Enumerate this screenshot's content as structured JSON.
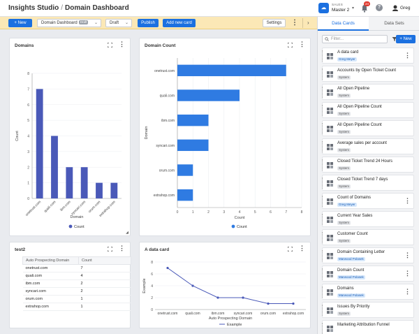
{
  "header": {
    "app_title": "Insights Studio",
    "separator": "/",
    "page_title": "Domain Dashboard",
    "org_label": "SALES",
    "org_name": "Master 2",
    "notification_count": "24",
    "user_name": "Greg"
  },
  "toolbar": {
    "new_label": "New",
    "dashboard_select": "Domain Dashboard",
    "draft_badge": "Draft",
    "status_select": "Draft",
    "publish_label": "Publish",
    "add_card_label": "Add new card",
    "settings_label": "Settings"
  },
  "cards": {
    "domains": {
      "title": "Domains"
    },
    "domain_count": {
      "title": "Domain Count"
    },
    "test2": {
      "title": "test2",
      "columns": [
        "Auto Prospecting Domain",
        "Count"
      ],
      "rows": [
        [
          "onetrust.com",
          "7"
        ],
        [
          "quali.com",
          "4"
        ],
        [
          "ibm.com",
          "2"
        ],
        [
          "syncari.com",
          "2"
        ],
        [
          "orum.com",
          "1"
        ],
        [
          "extrahop.com",
          "1"
        ]
      ]
    },
    "data_card": {
      "title": "A data card"
    }
  },
  "chart_data": [
    {
      "type": "bar",
      "title": "Domains",
      "categories": [
        "onetrust.com",
        "quali.com",
        "ibm.com",
        "syncari.com",
        "orum.com",
        "extrahop.com"
      ],
      "series": [
        {
          "name": "Count",
          "values": [
            7,
            4,
            2,
            2,
            1,
            1
          ]
        }
      ],
      "xlabel": "Domain",
      "ylabel": "Count",
      "ylim": [
        0,
        8
      ],
      "yticks": [
        0,
        1,
        2,
        3,
        4,
        5,
        6,
        7,
        8
      ],
      "color": "#4a59b8",
      "legend": "bottom",
      "grid": true
    },
    {
      "type": "bar",
      "orientation": "horizontal",
      "title": "Domain Count",
      "categories": [
        "onetrust.com",
        "quali.com",
        "ibm.com",
        "syncari.com",
        "orum.com",
        "extrahop.com"
      ],
      "series": [
        {
          "name": "Count",
          "values": [
            7,
            4,
            2,
            2,
            1,
            1
          ]
        }
      ],
      "xlabel": "Count",
      "ylabel": "Domain",
      "xlim": [
        0,
        8
      ],
      "xticks": [
        0,
        1,
        2,
        3,
        4,
        5,
        6,
        7,
        8
      ],
      "color": "#2f7be2",
      "legend": "bottom",
      "grid": true
    },
    {
      "type": "line",
      "title": "A data card",
      "categories": [
        "onetrust.com",
        "quali.com",
        "ibm.com",
        "syncari.com",
        "orum.com",
        "extrahop.com"
      ],
      "series": [
        {
          "name": "Example",
          "values": [
            7,
            4,
            2,
            2,
            1,
            1
          ]
        }
      ],
      "xlabel": "Auto Prospecting Domain",
      "ylabel": "Example",
      "ylim": [
        0,
        8
      ],
      "yticks": [
        0,
        2,
        4,
        6,
        8
      ],
      "color": "#4a59b8",
      "legend": "bottom",
      "grid": true
    }
  ],
  "panel": {
    "tab_cards": "Data Cards",
    "tab_sets": "Data Sets",
    "filter_placeholder": "Filter...",
    "new_label": "New",
    "items": [
      {
        "title": "A data card",
        "tag": "Greg Meyer",
        "tag_style": "blue",
        "menu": true
      },
      {
        "title": "Accounts by Open Ticket Count",
        "tag": "System",
        "tag_style": "gray",
        "menu": false
      },
      {
        "title": "All Open Pipeline",
        "tag": "System",
        "tag_style": "gray",
        "menu": false
      },
      {
        "title": "All Open Pipeline Count",
        "tag": "System",
        "tag_style": "gray",
        "menu": false
      },
      {
        "title": "All Open Pipeline Count",
        "tag": "System",
        "tag_style": "gray",
        "menu": false
      },
      {
        "title": "Average sales per account",
        "tag": "System",
        "tag_style": "gray",
        "menu": false
      },
      {
        "title": "Closed Ticket Trend 24 Hours",
        "tag": "System",
        "tag_style": "gray",
        "menu": false
      },
      {
        "title": "Closed Ticket Trend 7 days",
        "tag": "System",
        "tag_style": "gray",
        "menu": false
      },
      {
        "title": "Count of Domains",
        "tag": "Greg Meyer",
        "tag_style": "blue",
        "menu": true
      },
      {
        "title": "Current Year Sales",
        "tag": "System",
        "tag_style": "gray",
        "menu": false
      },
      {
        "title": "Customer Count",
        "tag": "System",
        "tag_style": "gray",
        "menu": false
      },
      {
        "title": "Domain Containing Letter",
        "tag": "Marwood Polasek",
        "tag_style": "blue",
        "menu": true
      },
      {
        "title": "Domain Count",
        "tag": "Marwood Polasek",
        "tag_style": "blue",
        "menu": true
      },
      {
        "title": "Domains",
        "tag": "Marwood Polasek",
        "tag_style": "blue",
        "menu": true
      },
      {
        "title": "Issues By Priority",
        "tag": "System",
        "tag_style": "gray",
        "menu": false
      },
      {
        "title": "Marketing Attribution Funnel",
        "tag": "",
        "tag_style": "gray",
        "menu": false
      }
    ]
  }
}
